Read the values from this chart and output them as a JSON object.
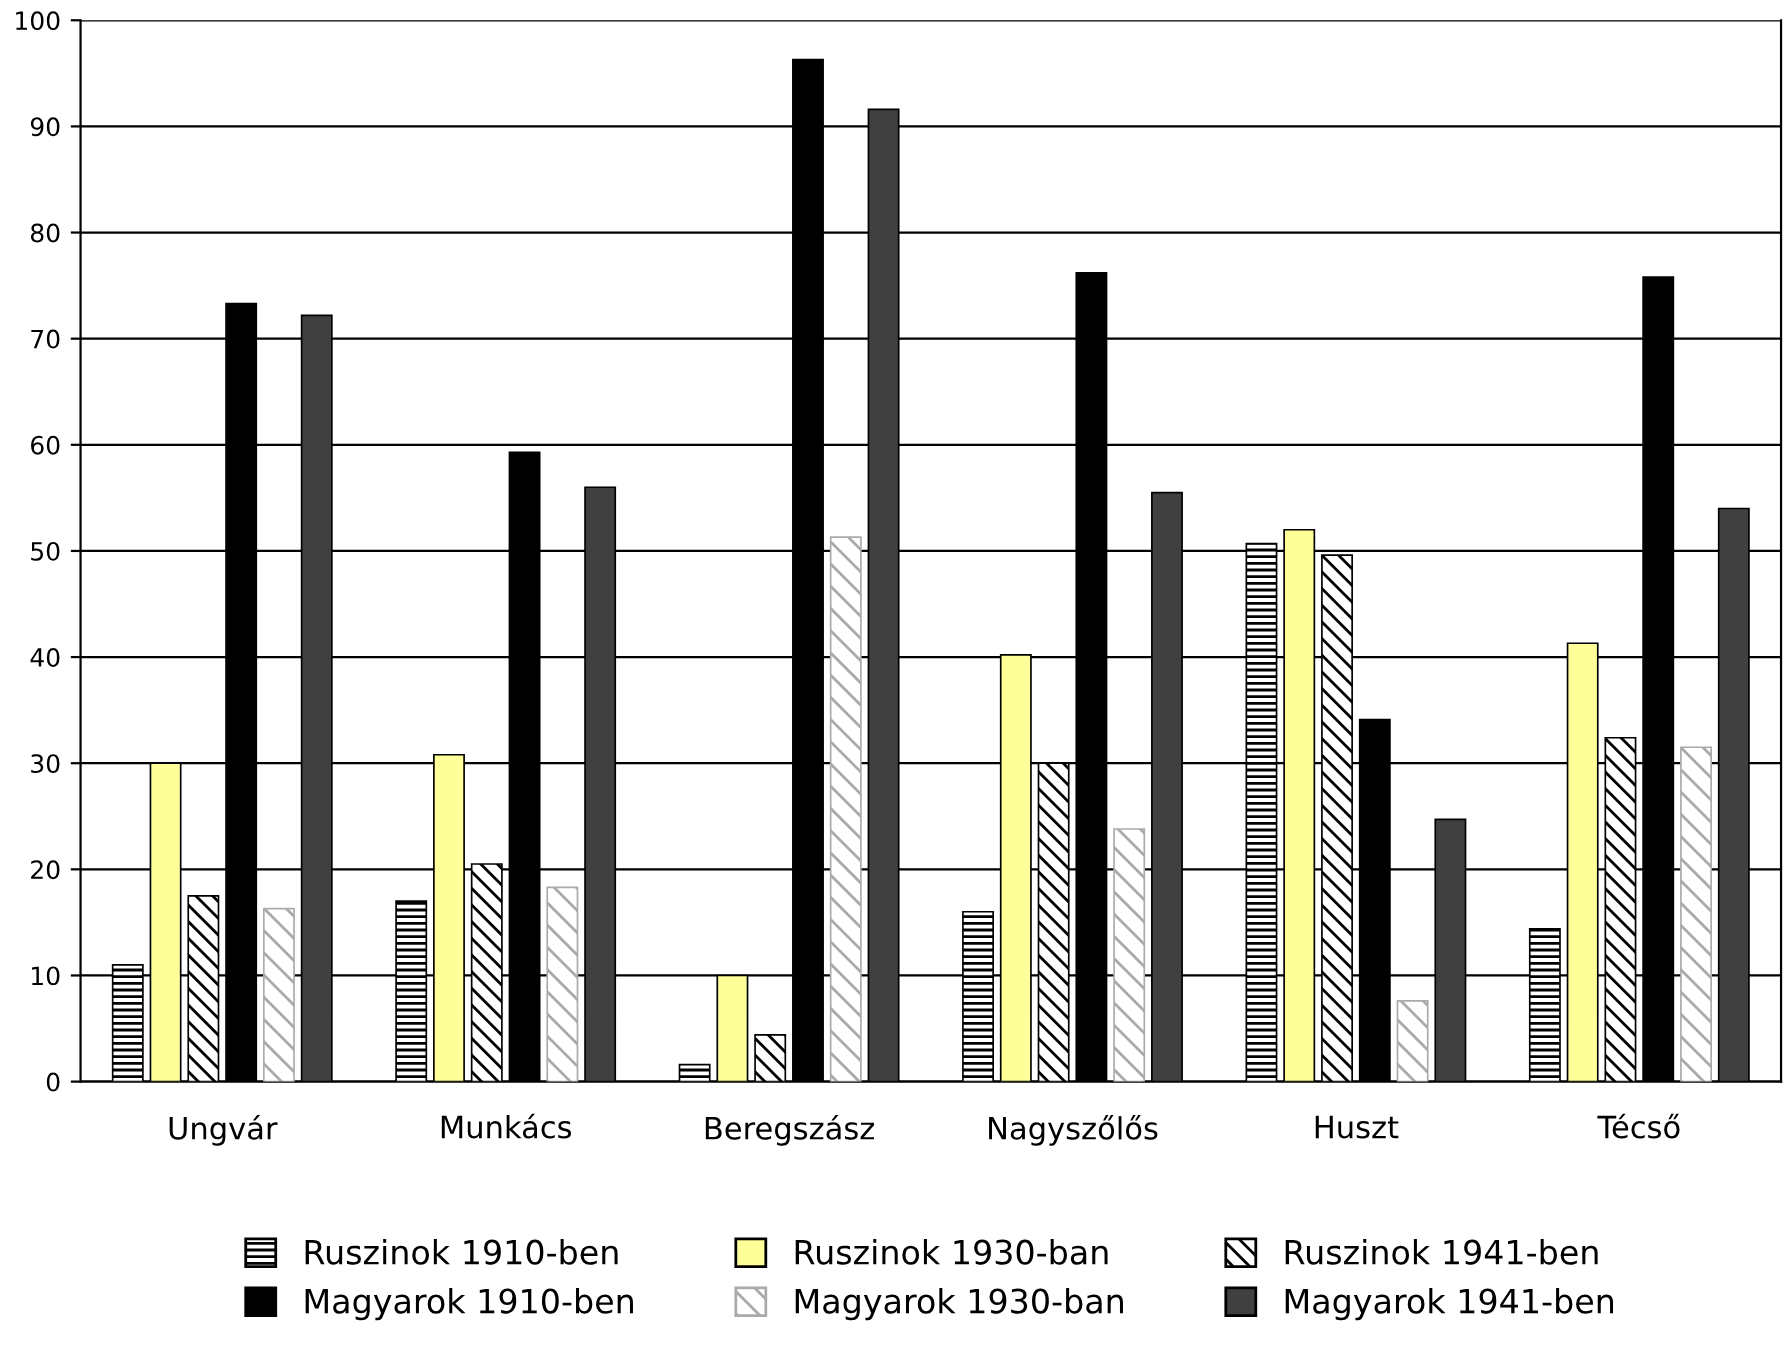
{
  "chart_data": {
    "type": "bar",
    "categories": [
      "Ungvár",
      "Munkács",
      "Beregszász",
      "Nagyszőlős",
      "Huszt",
      "Técső"
    ],
    "series": [
      {
        "name": "Ruszinok 1910-ben",
        "color": "#000000",
        "values": [
          11,
          17,
          1.6,
          16,
          50.7,
          14.4
        ]
      },
      {
        "name": "Ruszinok 1930-ban",
        "color": "#ffff99",
        "values": [
          30,
          30.8,
          10,
          40.2,
          52,
          41.3
        ]
      },
      {
        "name": "Ruszinok 1941-ben",
        "color": "#000000",
        "values": [
          17.5,
          20.5,
          4.4,
          30,
          49.6,
          32.4
        ]
      },
      {
        "name": "Magyarok 1910-ben",
        "color": "#000000",
        "values": [
          73.3,
          59.3,
          96.3,
          76.2,
          34.1,
          75.8
        ]
      },
      {
        "name": "Magyarok 1930-ban",
        "color": "#aaaaaa",
        "values": [
          16.3,
          18.3,
          51.3,
          23.8,
          7.6,
          31.5
        ]
      },
      {
        "name": "Magyarok 1941-ben",
        "color": "#404040",
        "values": [
          72.2,
          56,
          91.6,
          55.5,
          24.7,
          54
        ]
      }
    ],
    "ylim": [
      0,
      100
    ],
    "yticks": [
      0,
      10,
      20,
      30,
      40,
      50,
      60,
      70,
      80,
      90,
      100
    ],
    "grid": "y",
    "legend": "bottom"
  }
}
